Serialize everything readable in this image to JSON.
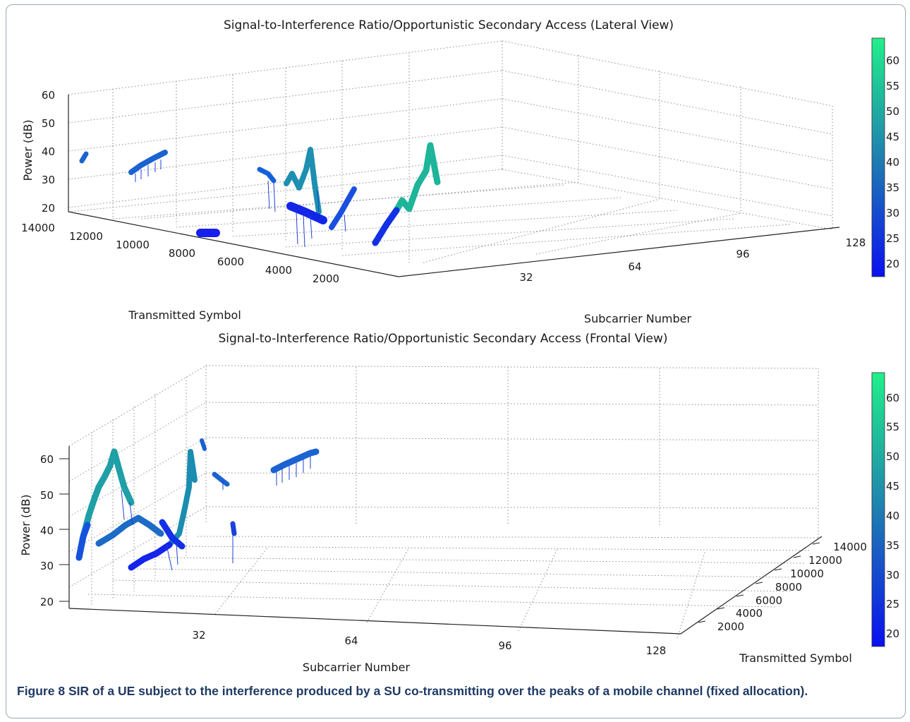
{
  "caption": {
    "label": "Figure 8",
    "text": " SIR of a UE subject to the interference produced by a SU co-transmitting over the peaks of a mobile channel (fixed allocation)."
  },
  "colors": {
    "colormap_low": "#0a10f0",
    "colormap_mid": "#1f7fb0",
    "colormap_high": "#21f08a",
    "axis": "#222222",
    "grid": "#8c8c8c",
    "caption": "#1f3a63"
  },
  "chart_data": [
    {
      "type": "surface3d",
      "title": "Signal-to-Interference Ratio/Opportunistic Secondary Access (Lateral View)",
      "xlabel": "Subcarrier Number",
      "ylabel": "Transmitted Symbol",
      "zlabel": "Power (dB)",
      "x_ticks": [
        "32",
        "64",
        "96",
        "128"
      ],
      "y_ticks": [
        "2000",
        "4000",
        "6000",
        "8000",
        "10000",
        "12000",
        "14000"
      ],
      "z_ticks": [
        "20",
        "30",
        "40",
        "50",
        "60"
      ],
      "xlim": [
        0,
        128
      ],
      "ylim": [
        0,
        14000
      ],
      "zlim": [
        20,
        60
      ],
      "grid": true,
      "colorbar": {
        "ticks": [
          "20",
          "25",
          "30",
          "35",
          "40",
          "45",
          "50",
          "55",
          "60"
        ],
        "range": [
          17,
          64
        ]
      },
      "series": [
        {
          "points": [
            {
              "x": 120,
              "y": 1500,
              "z": 33
            },
            {
              "x": 122,
              "y": 2500,
              "z": 38
            },
            {
              "x": 124,
              "y": 3000,
              "z": 45
            },
            {
              "x": 126,
              "y": 4000,
              "z": 57
            },
            {
              "x": 127,
              "y": 4500,
              "z": 50
            }
          ]
        },
        {
          "points": [
            {
              "x": 85,
              "y": 3000,
              "z": 28
            },
            {
              "x": 90,
              "y": 3500,
              "z": 33
            },
            {
              "x": 95,
              "y": 4000,
              "z": 36
            }
          ]
        },
        {
          "points": [
            {
              "x": 70,
              "y": 5000,
              "z": 36
            },
            {
              "x": 74,
              "y": 6000,
              "z": 55
            },
            {
              "x": 78,
              "y": 7000,
              "z": 38
            },
            {
              "x": 82,
              "y": 8000,
              "z": 30
            }
          ]
        },
        {
          "points": [
            {
              "x": 10,
              "y": 6000,
              "z": 46
            },
            {
              "x": 20,
              "y": 7500,
              "z": 48
            }
          ]
        },
        {
          "points": [
            {
              "x": 5,
              "y": 12000,
              "z": 38
            },
            {
              "x": 15,
              "y": 11000,
              "z": 40
            }
          ]
        }
      ]
    },
    {
      "type": "surface3d",
      "title": "Signal-to-Interference Ratio/Opportunistic Secondary Access (Frontal View)",
      "xlabel": "Subcarrier Number",
      "ylabel": "Transmitted Symbol",
      "zlabel": "Power (dB)",
      "x_ticks": [
        "32",
        "64",
        "96",
        "128"
      ],
      "y_ticks": [
        "2000",
        "4000",
        "6000",
        "8000",
        "10000",
        "12000",
        "14000"
      ],
      "z_ticks": [
        "20",
        "30",
        "40",
        "50",
        "60"
      ],
      "xlim": [
        0,
        128
      ],
      "ylim": [
        0,
        14000
      ],
      "zlim": [
        20,
        60
      ],
      "grid": true,
      "colorbar": {
        "ticks": [
          "20",
          "25",
          "30",
          "35",
          "40",
          "45",
          "50",
          "55",
          "60"
        ],
        "range": [
          17,
          64
        ]
      },
      "series": [
        {
          "points": [
            {
              "x": 2,
              "y": 1500,
              "z": 32
            },
            {
              "x": 6,
              "y": 3000,
              "z": 44
            },
            {
              "x": 10,
              "y": 4500,
              "z": 60
            },
            {
              "x": 14,
              "y": 3500,
              "z": 45
            }
          ]
        },
        {
          "points": [
            {
              "x": 18,
              "y": 2000,
              "z": 28
            },
            {
              "x": 24,
              "y": 3000,
              "z": 36
            },
            {
              "x": 28,
              "y": 4000,
              "z": 57
            },
            {
              "x": 30,
              "y": 5000,
              "z": 42
            }
          ]
        },
        {
          "points": [
            {
              "x": 34,
              "y": 6500,
              "z": 52
            },
            {
              "x": 38,
              "y": 7000,
              "z": 50
            }
          ]
        },
        {
          "points": [
            {
              "x": 60,
              "y": 9000,
              "z": 53
            },
            {
              "x": 70,
              "y": 10000,
              "z": 58
            }
          ]
        }
      ]
    }
  ]
}
